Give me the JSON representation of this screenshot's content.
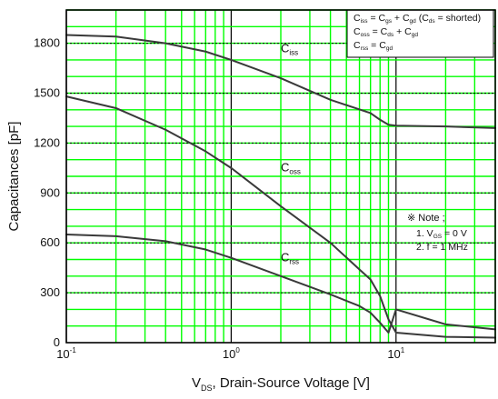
{
  "chart_data": {
    "type": "line",
    "title": "",
    "xlabel": {
      "main": "V",
      "sub": "DS",
      "rest": ", Drain-Source Voltage [V]"
    },
    "ylabel": "Capacitances [pF]",
    "xscale": "log",
    "xlim": [
      0.1,
      40
    ],
    "ylim": [
      0,
      2000
    ],
    "grid": true,
    "x_ticks": [
      {
        "value": 0.1,
        "base": "10",
        "exp": "-1"
      },
      {
        "value": 1,
        "base": "10",
        "exp": "0"
      },
      {
        "value": 10,
        "base": "10",
        "exp": "1"
      }
    ],
    "y_ticks": [
      0,
      300,
      600,
      900,
      1200,
      1500,
      1800
    ],
    "series": [
      {
        "name": "Ciss",
        "label": {
          "main": "C",
          "sub": "iss"
        },
        "x": [
          0.1,
          0.2,
          0.4,
          0.7,
          1,
          2,
          4,
          7,
          8,
          9,
          10,
          20,
          40
        ],
        "y": [
          1850,
          1840,
          1800,
          1750,
          1700,
          1590,
          1460,
          1380,
          1340,
          1310,
          1305,
          1300,
          1290
        ]
      },
      {
        "name": "Coss",
        "label": {
          "main": "C",
          "sub": "oss"
        },
        "x": [
          0.1,
          0.2,
          0.4,
          0.7,
          1,
          2,
          4,
          6,
          7,
          8,
          9,
          10,
          20,
          40
        ],
        "y": [
          1480,
          1410,
          1280,
          1150,
          1050,
          820,
          600,
          440,
          380,
          280,
          140,
          60,
          35,
          30
        ]
      },
      {
        "name": "Crss",
        "label": {
          "main": "C",
          "sub": "rss"
        },
        "x": [
          0.1,
          0.2,
          0.4,
          0.7,
          1,
          2,
          4,
          6,
          7,
          8,
          9,
          10,
          20,
          40
        ],
        "y": [
          650,
          640,
          610,
          560,
          510,
          400,
          290,
          220,
          180,
          120,
          60,
          200,
          110,
          80
        ]
      }
    ],
    "legend": {
      "placement": "top-right",
      "lines": [
        {
          "left": {
            "main": "C",
            "sub": "iss"
          },
          "right": "= C",
          "sub1": "gs",
          "plus": "+ C",
          "sub2": "gd",
          "tail": "(C",
          "sub3": "ds",
          "end": "= shorted)"
        },
        {
          "left": {
            "main": "C",
            "sub": "oss"
          },
          "right": "= C",
          "sub1": "ds",
          "plus": "+ C",
          "sub2": "gd"
        },
        {
          "left": {
            "main": "C",
            "sub": "rss"
          },
          "right": "= C",
          "sub1": "gd"
        }
      ]
    },
    "note": {
      "header": "※ Note ;",
      "lines": [
        {
          "prefix": "1. V",
          "sub": "GS",
          "suffix": " = 0 V"
        },
        {
          "prefix": "2. f = 1 MHz",
          "sub": "",
          "suffix": ""
        }
      ]
    },
    "colors": {
      "grid": "#00ff00",
      "curve": "#3a3a3a",
      "axes": "#000000",
      "dotted_grid": "#000000",
      "background": "#ffffff"
    }
  }
}
